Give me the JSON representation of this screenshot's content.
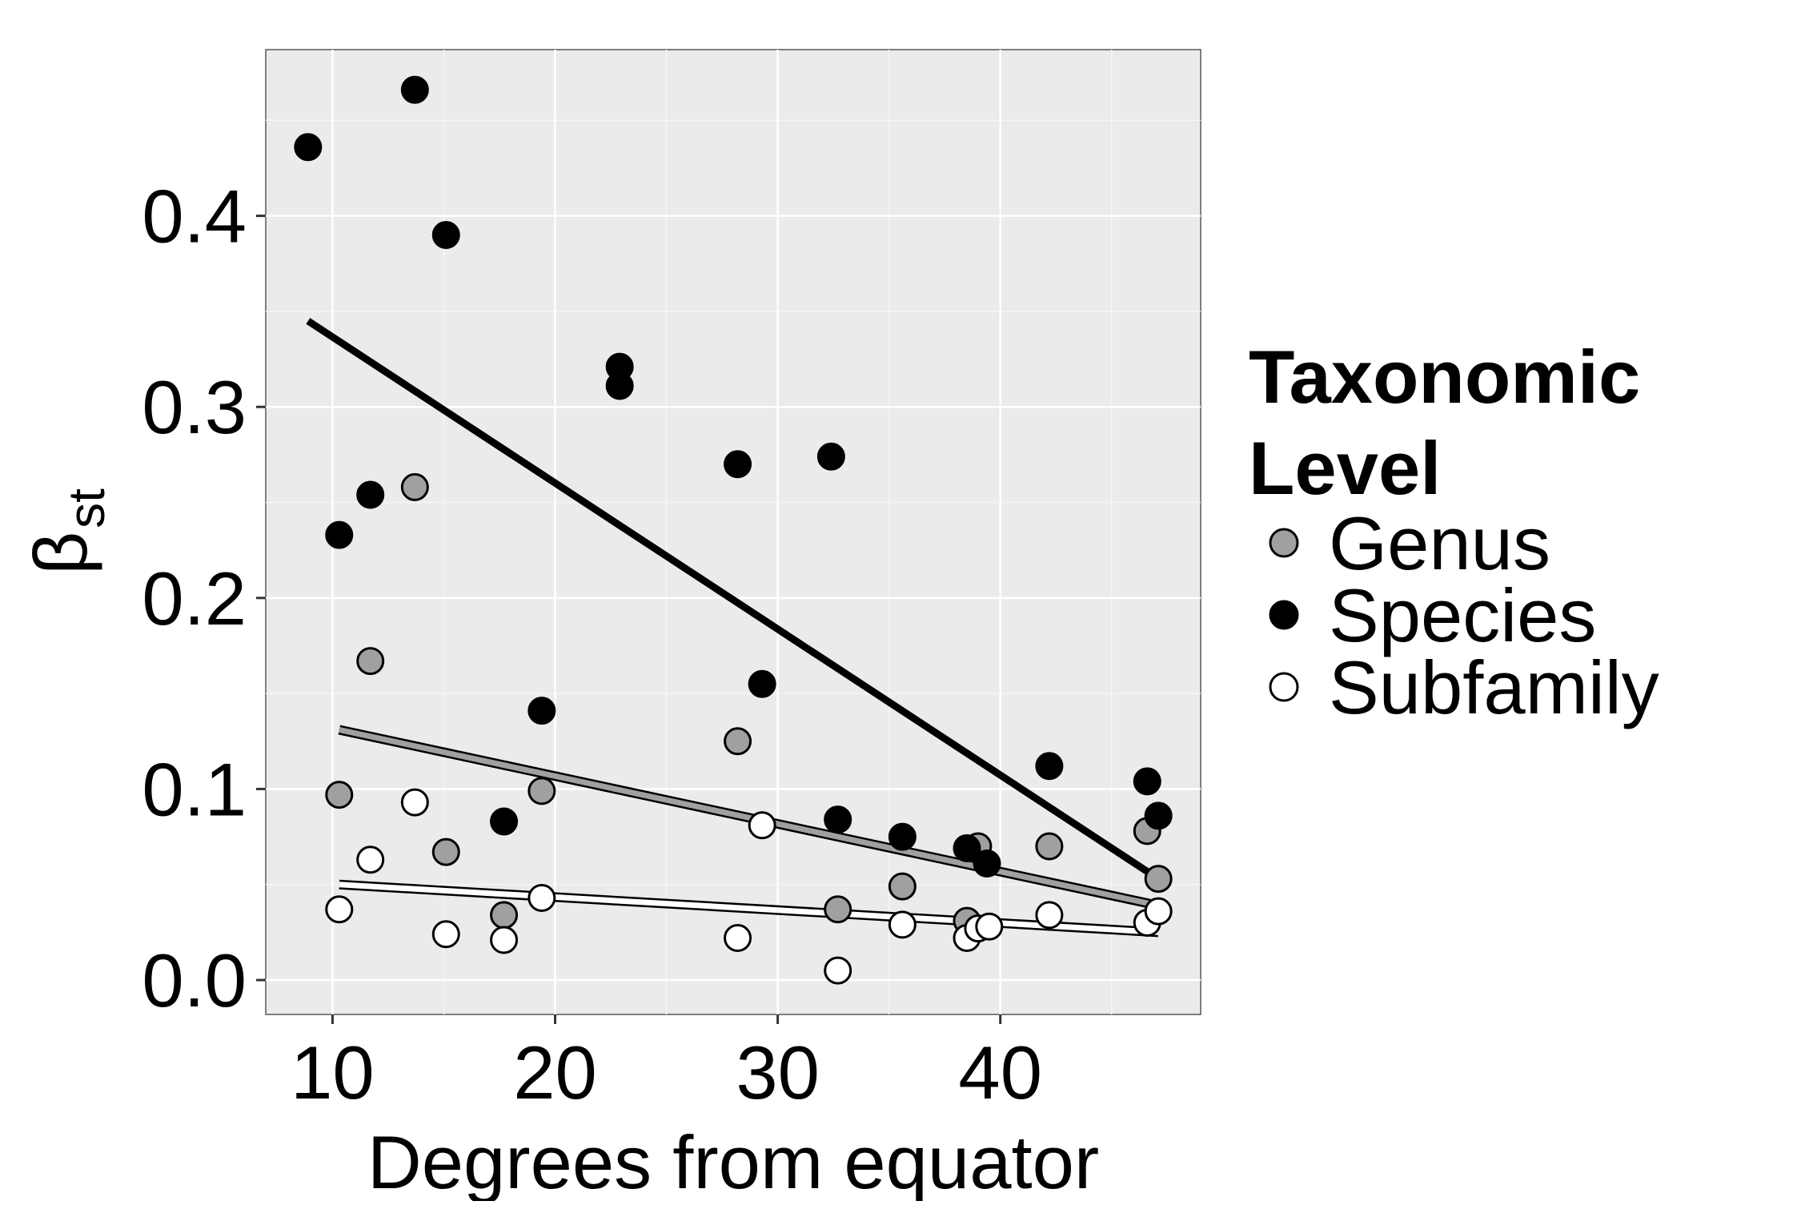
{
  "chart_data": {
    "type": "scatter",
    "xlabel": "Degrees from equator",
    "ylabel": "β",
    "ylabel_subscript": "st",
    "xlim": [
      7,
      49
    ],
    "ylim": [
      -0.018,
      0.487
    ],
    "x_ticks": [
      10,
      20,
      30,
      40
    ],
    "y_ticks": [
      0.0,
      0.1,
      0.2,
      0.3,
      0.4
    ],
    "x_tick_labels": [
      "10",
      "20",
      "30",
      "40"
    ],
    "y_tick_labels": [
      "0.0",
      "0.1",
      "0.2",
      "0.3",
      "0.4"
    ],
    "grid": true,
    "background": "#ebebeb",
    "legend": {
      "title_line1": "Taxonomic",
      "title_line2": "Level",
      "placement": "right"
    },
    "series": [
      {
        "name": "Genus",
        "fill": "#a0a0a0",
        "points": [
          {
            "x": 10.3,
            "y": 0.097
          },
          {
            "x": 11.7,
            "y": 0.167
          },
          {
            "x": 13.7,
            "y": 0.258
          },
          {
            "x": 15.1,
            "y": 0.067
          },
          {
            "x": 17.7,
            "y": 0.034
          },
          {
            "x": 19.4,
            "y": 0.099
          },
          {
            "x": 28.2,
            "y": 0.125
          },
          {
            "x": 32.7,
            "y": 0.037
          },
          {
            "x": 35.6,
            "y": 0.049
          },
          {
            "x": 38.5,
            "y": 0.031
          },
          {
            "x": 39.0,
            "y": 0.07
          },
          {
            "x": 42.2,
            "y": 0.07
          },
          {
            "x": 46.6,
            "y": 0.078
          },
          {
            "x": 47.1,
            "y": 0.053
          }
        ],
        "trend": {
          "x1": 10.3,
          "y1": 0.131,
          "x2": 47.1,
          "y2": 0.039
        }
      },
      {
        "name": "Species",
        "fill": "#000000",
        "points": [
          {
            "x": 8.9,
            "y": 0.436
          },
          {
            "x": 10.3,
            "y": 0.233
          },
          {
            "x": 11.7,
            "y": 0.254
          },
          {
            "x": 13.7,
            "y": 0.466
          },
          {
            "x": 15.1,
            "y": 0.39
          },
          {
            "x": 17.7,
            "y": 0.083
          },
          {
            "x": 19.4,
            "y": 0.141
          },
          {
            "x": 22.9,
            "y": 0.321
          },
          {
            "x": 22.9,
            "y": 0.311
          },
          {
            "x": 28.2,
            "y": 0.27
          },
          {
            "x": 29.3,
            "y": 0.155
          },
          {
            "x": 32.4,
            "y": 0.274
          },
          {
            "x": 32.7,
            "y": 0.084
          },
          {
            "x": 35.6,
            "y": 0.075
          },
          {
            "x": 38.5,
            "y": 0.069
          },
          {
            "x": 39.4,
            "y": 0.061
          },
          {
            "x": 42.2,
            "y": 0.112
          },
          {
            "x": 46.6,
            "y": 0.104
          },
          {
            "x": 47.1,
            "y": 0.086
          }
        ],
        "trend": {
          "x1": 8.9,
          "y1": 0.345,
          "x2": 47.1,
          "y2": 0.053
        }
      },
      {
        "name": "Subfamily",
        "fill": "#ffffff",
        "points": [
          {
            "x": 10.3,
            "y": 0.037
          },
          {
            "x": 11.7,
            "y": 0.063
          },
          {
            "x": 13.7,
            "y": 0.093
          },
          {
            "x": 15.1,
            "y": 0.024
          },
          {
            "x": 17.7,
            "y": 0.021
          },
          {
            "x": 19.4,
            "y": 0.043
          },
          {
            "x": 28.2,
            "y": 0.022
          },
          {
            "x": 29.3,
            "y": 0.081
          },
          {
            "x": 32.7,
            "y": 0.005
          },
          {
            "x": 35.6,
            "y": 0.029
          },
          {
            "x": 38.5,
            "y": 0.022
          },
          {
            "x": 39.0,
            "y": 0.027
          },
          {
            "x": 39.5,
            "y": 0.028
          },
          {
            "x": 42.2,
            "y": 0.034
          },
          {
            "x": 46.6,
            "y": 0.03
          },
          {
            "x": 47.1,
            "y": 0.036
          }
        ],
        "trend": {
          "x1": 10.3,
          "y1": 0.05,
          "x2": 47.1,
          "y2": 0.025
        }
      }
    ]
  }
}
